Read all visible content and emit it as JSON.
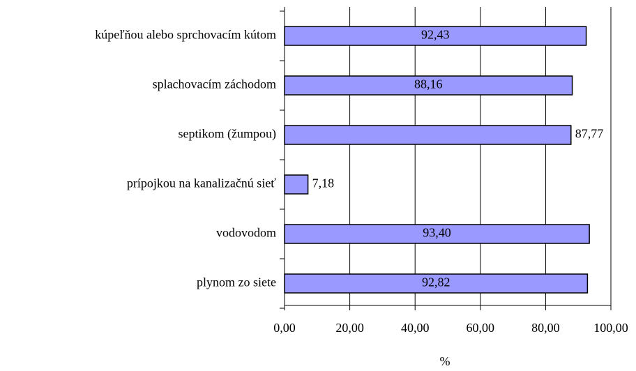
{
  "chart_data": {
    "type": "bar",
    "orientation": "horizontal",
    "categories": [
      "kúpeľňou alebo sprchovacím kútom",
      "splachovacím záchodom",
      "septikom (žumpou)",
      "prípojkou na kanalizačnú sieť",
      "vodovodom",
      "plynom zo siete"
    ],
    "values": [
      92.43,
      88.16,
      87.77,
      7.18,
      93.4,
      92.82
    ],
    "value_labels": [
      "92,43",
      "88,16",
      "87,77",
      "7,18",
      "93,40",
      "92,82"
    ],
    "color": "#9999ff",
    "x_label": "%",
    "xlim": [
      0,
      100
    ],
    "xticks": [
      {
        "value": 0,
        "label": "0,00"
      },
      {
        "value": 20,
        "label": "20,00"
      },
      {
        "value": 40,
        "label": "40,00"
      },
      {
        "value": 60,
        "label": "60,00"
      },
      {
        "value": 80,
        "label": "80,00"
      },
      {
        "value": 100,
        "label": "100,00"
      }
    ],
    "grid": true
  }
}
